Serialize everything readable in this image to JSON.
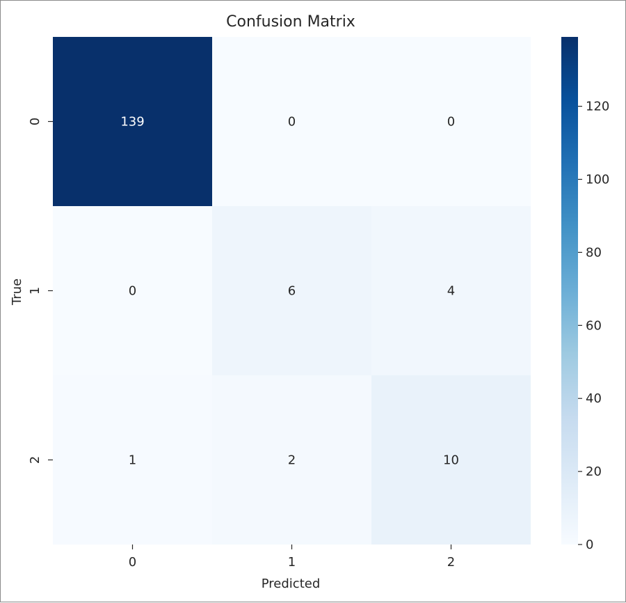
{
  "chart_data": {
    "type": "heatmap",
    "title": "Confusion Matrix",
    "xlabel": "Predicted",
    "ylabel": "True",
    "x_categories": [
      "0",
      "1",
      "2"
    ],
    "y_categories": [
      "0",
      "1",
      "2"
    ],
    "values": [
      [
        139,
        0,
        0
      ],
      [
        0,
        6,
        4
      ],
      [
        1,
        2,
        10
      ]
    ],
    "colormap": "Blues",
    "colorbar": {
      "range": [
        0,
        139
      ],
      "ticks": [
        0,
        20,
        40,
        60,
        80,
        100,
        120
      ],
      "tick_labels": [
        "0",
        "20",
        "40",
        "60",
        "80",
        "100",
        "120"
      ]
    },
    "colors": {
      "low": "#f7fbff",
      "high": "#08306b",
      "text_dark": "#262626",
      "text_light": "#ffffff"
    }
  }
}
